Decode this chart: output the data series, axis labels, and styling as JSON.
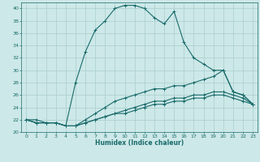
{
  "xlabel": "Humidex (Indice chaleur)",
  "bg_color": "#cde8e8",
  "grid_color": "#a8cece",
  "line_color": "#1a6b6b",
  "xlim": [
    -0.5,
    23.5
  ],
  "ylim": [
    20,
    41
  ],
  "yticks": [
    20,
    22,
    24,
    26,
    28,
    30,
    32,
    34,
    36,
    38,
    40
  ],
  "xticks": [
    0,
    1,
    2,
    3,
    4,
    5,
    6,
    7,
    8,
    9,
    10,
    11,
    12,
    13,
    14,
    15,
    16,
    17,
    18,
    19,
    20,
    21,
    22,
    23
  ],
  "lines": [
    {
      "x": [
        0,
        1,
        2,
        3,
        4,
        5,
        6,
        7,
        8,
        9,
        10,
        11,
        12,
        13,
        14,
        15,
        16,
        17,
        18,
        19,
        20,
        21,
        22,
        23
      ],
      "y": [
        22,
        22,
        21.5,
        21.5,
        21,
        28,
        33,
        36.5,
        38,
        40,
        40.5,
        40.5,
        40,
        38.5,
        37.5,
        39.5,
        34.5,
        32,
        31,
        30,
        30,
        26.5,
        26,
        24.5
      ]
    },
    {
      "x": [
        0,
        1,
        2,
        3,
        4,
        5,
        6,
        7,
        8,
        9,
        10,
        11,
        12,
        13,
        14,
        15,
        16,
        17,
        18,
        19,
        20,
        21,
        22,
        23
      ],
      "y": [
        22,
        21.5,
        21.5,
        21.5,
        21,
        21,
        22,
        23,
        24,
        25,
        25.5,
        26,
        26.5,
        27,
        27,
        27.5,
        27.5,
        28,
        28.5,
        29,
        30,
        26.5,
        26,
        24.5
      ]
    },
    {
      "x": [
        0,
        1,
        2,
        3,
        4,
        5,
        6,
        7,
        8,
        9,
        10,
        11,
        12,
        13,
        14,
        15,
        16,
        17,
        18,
        19,
        20,
        21,
        22,
        23
      ],
      "y": [
        22,
        21.5,
        21.5,
        21.5,
        21,
        21,
        21.5,
        22,
        22.5,
        23,
        23.5,
        24,
        24.5,
        25,
        25,
        25.5,
        25.5,
        26,
        26,
        26.5,
        26.5,
        26,
        25.5,
        24.5
      ]
    },
    {
      "x": [
        0,
        1,
        2,
        3,
        4,
        5,
        6,
        7,
        8,
        9,
        10,
        11,
        12,
        13,
        14,
        15,
        16,
        17,
        18,
        19,
        20,
        21,
        22,
        23
      ],
      "y": [
        22,
        21.5,
        21.5,
        21.5,
        21,
        21,
        21.5,
        22,
        22.5,
        23,
        23,
        23.5,
        24,
        24.5,
        24.5,
        25,
        25,
        25.5,
        25.5,
        26,
        26,
        25.5,
        25,
        24.5
      ]
    }
  ]
}
